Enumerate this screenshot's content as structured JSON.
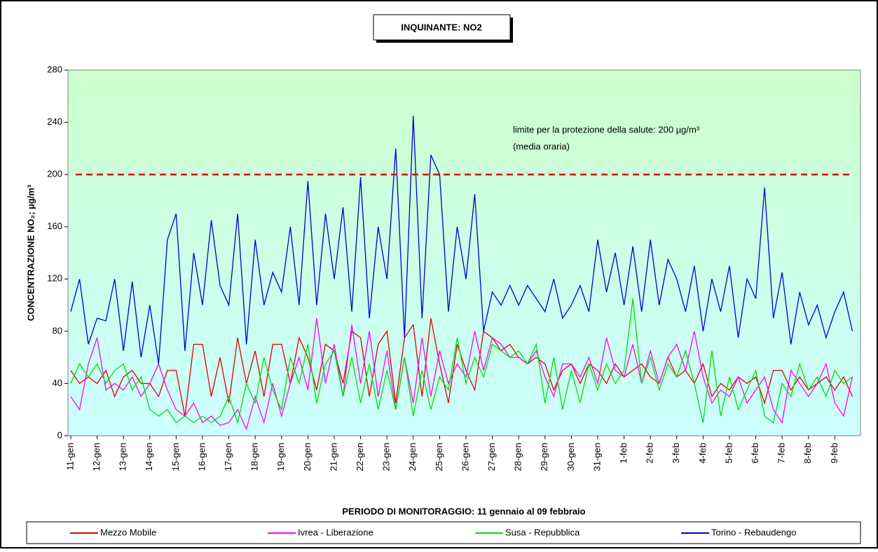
{
  "chart_data": {
    "type": "line",
    "title": "INQUINANTE: NO2",
    "y_label": "CONCENTRAZIONE NO₂;  µg/m³",
    "x_label": "PERIODO DI MONITORAGGIO: 11 gennaio al 09 febbraio",
    "annotations": [
      "limite per la protezione della salute: 200  µg/m³",
      "(media oraria)"
    ],
    "threshold": 200,
    "threshold_color": "#e00000",
    "categories": [
      "11-gen",
      null,
      null,
      "12-gen",
      null,
      null,
      "13-gen",
      null,
      null,
      "14-gen",
      null,
      null,
      "15-gen",
      null,
      null,
      "16-gen",
      null,
      null,
      "17-gen",
      null,
      null,
      "18-gen",
      null,
      null,
      "19-gen",
      null,
      null,
      "20-gen",
      null,
      null,
      "21-gen",
      null,
      null,
      "22-gen",
      null,
      null,
      "23-gen",
      null,
      null,
      "24-gen",
      null,
      null,
      "25-gen",
      null,
      null,
      "26-gen",
      null,
      null,
      "27-gen",
      null,
      null,
      "28-gen",
      null,
      null,
      "29-gen",
      null,
      null,
      "30-gen",
      null,
      null,
      "31-gen",
      null,
      null,
      "1-feb",
      null,
      null,
      "2-feb",
      null,
      null,
      "3-feb",
      null,
      null,
      "4-feb",
      null,
      null,
      "5-feb",
      null,
      null,
      "6-feb",
      null,
      null,
      "7-feb",
      null,
      null,
      "8-feb",
      null,
      null,
      "9-feb",
      null,
      null
    ],
    "series": [
      {
        "name": "Mezzo Mobile",
        "color": "#e00000",
        "values": [
          50,
          40,
          45,
          40,
          50,
          30,
          45,
          50,
          40,
          40,
          30,
          50,
          50,
          15,
          70,
          70,
          30,
          60,
          25,
          75,
          40,
          65,
          30,
          70,
          70,
          40,
          75,
          60,
          35,
          70,
          65,
          40,
          80,
          75,
          30,
          70,
          80,
          25,
          75,
          85,
          30,
          90,
          55,
          25,
          70,
          50,
          35,
          80,
          75,
          65,
          70,
          60,
          55,
          60,
          55,
          35,
          50,
          55,
          40,
          55,
          50,
          40,
          55,
          45,
          50,
          55,
          45,
          40,
          60,
          45,
          50,
          40,
          55,
          30,
          40,
          35,
          45,
          40,
          45,
          25,
          50,
          50,
          35,
          45,
          35,
          40,
          45,
          35,
          45,
          30
        ]
      },
      {
        "name": "Ivrea - Liberazione",
        "color": "#ff00ff",
        "values": [
          30,
          20,
          55,
          75,
          35,
          40,
          35,
          45,
          30,
          40,
          55,
          35,
          20,
          15,
          25,
          10,
          15,
          8,
          10,
          20,
          5,
          30,
          10,
          40,
          15,
          40,
          60,
          35,
          90,
          40,
          70,
          30,
          85,
          40,
          80,
          30,
          65,
          20,
          60,
          25,
          75,
          30,
          65,
          40,
          55,
          45,
          80,
          50,
          75,
          70,
          60,
          60,
          55,
          65,
          45,
          30,
          55,
          55,
          45,
          60,
          40,
          75,
          50,
          45,
          70,
          40,
          65,
          40,
          60,
          70,
          50,
          80,
          45,
          25,
          35,
          30,
          45,
          25,
          35,
          45,
          20,
          10,
          50,
          40,
          30,
          40,
          55,
          25,
          15,
          45
        ]
      },
      {
        "name": "Susa - Repubblica",
        "color": "#00e000",
        "values": [
          40,
          55,
          45,
          55,
          40,
          50,
          55,
          35,
          45,
          20,
          15,
          20,
          10,
          15,
          10,
          15,
          10,
          15,
          30,
          10,
          40,
          25,
          60,
          35,
          20,
          60,
          40,
          70,
          25,
          55,
          65,
          30,
          60,
          25,
          55,
          20,
          50,
          20,
          60,
          15,
          50,
          20,
          45,
          35,
          75,
          40,
          60,
          45,
          70,
          65,
          60,
          65,
          55,
          70,
          25,
          60,
          20,
          50,
          25,
          55,
          35,
          55,
          40,
          50,
          105,
          40,
          60,
          35,
          55,
          45,
          65,
          40,
          10,
          65,
          15,
          45,
          20,
          35,
          50,
          15,
          10,
          40,
          30,
          55,
          35,
          45,
          30,
          50,
          40,
          45
        ]
      },
      {
        "name": "Torino - Rebaudengo",
        "color": "#0000d0",
        "values": [
          95,
          120,
          70,
          90,
          88,
          120,
          65,
          118,
          60,
          100,
          55,
          150,
          170,
          65,
          140,
          100,
          165,
          115,
          100,
          170,
          70,
          150,
          100,
          125,
          110,
          160,
          100,
          195,
          100,
          170,
          120,
          175,
          95,
          198,
          90,
          160,
          120,
          220,
          75,
          245,
          90,
          215,
          200,
          95,
          160,
          120,
          185,
          80,
          110,
          100,
          115,
          100,
          115,
          105,
          95,
          120,
          90,
          100,
          115,
          95,
          150,
          110,
          140,
          100,
          145,
          95,
          150,
          100,
          135,
          120,
          95,
          130,
          80,
          120,
          95,
          130,
          75,
          120,
          105,
          190,
          90,
          125,
          70,
          110,
          85,
          100,
          75,
          95,
          110,
          80
        ]
      }
    ],
    "ylim": [
      0,
      280
    ],
    "yticks": [
      0,
      40,
      80,
      120,
      160,
      200,
      240,
      280
    ]
  }
}
